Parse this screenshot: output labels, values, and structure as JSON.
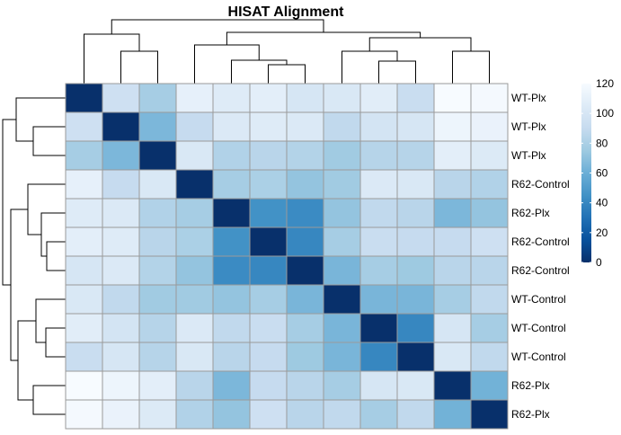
{
  "chart_data": {
    "type": "heatmap",
    "title": "HISAT Alignment",
    "row_labels": [
      "WT-Plx",
      "WT-Plx",
      "WT-Plx",
      "R62-Control",
      "R62-Plx",
      "R62-Control",
      "R62-Control",
      "WT-Control",
      "WT-Control",
      "WT-Control",
      "R62-Plx",
      "R62-Plx"
    ],
    "values": [
      [
        0,
        95,
        78,
        110,
        105,
        108,
        100,
        102,
        107,
        92,
        120,
        118
      ],
      [
        95,
        0,
        65,
        90,
        103,
        105,
        103,
        88,
        98,
        100,
        114,
        112
      ],
      [
        78,
        65,
        0,
        102,
        82,
        85,
        83,
        76,
        84,
        84,
        108,
        104
      ],
      [
        110,
        90,
        102,
        0,
        78,
        80,
        72,
        76,
        103,
        102,
        85,
        82
      ],
      [
        105,
        103,
        82,
        78,
        0,
        45,
        42,
        72,
        88,
        85,
        65,
        72
      ],
      [
        108,
        105,
        85,
        80,
        45,
        0,
        40,
        78,
        92,
        90,
        90,
        95
      ],
      [
        100,
        103,
        83,
        72,
        42,
        40,
        0,
        64,
        78,
        75,
        85,
        85
      ],
      [
        102,
        88,
        76,
        76,
        72,
        78,
        64,
        0,
        64,
        64,
        78,
        88
      ],
      [
        107,
        98,
        84,
        103,
        88,
        92,
        78,
        64,
        0,
        40,
        100,
        78
      ],
      [
        92,
        100,
        84,
        102,
        85,
        90,
        75,
        64,
        40,
        0,
        102,
        88
      ],
      [
        120,
        114,
        108,
        85,
        65,
        90,
        85,
        78,
        100,
        102,
        0,
        62
      ],
      [
        118,
        112,
        104,
        82,
        72,
        95,
        85,
        88,
        78,
        88,
        62,
        0
      ]
    ],
    "color_scale": {
      "min": 0,
      "max": 120,
      "ticks": [
        0,
        20,
        40,
        60,
        80,
        100,
        120
      ],
      "colors": [
        "#08306b",
        "#08519c",
        "#2171b5",
        "#4292c6",
        "#6baed6",
        "#9ecae1",
        "#c6dbef",
        "#deebf7",
        "#f7fbff"
      ]
    },
    "legend_position": "right",
    "dendrograms": "row-left, column-top"
  }
}
